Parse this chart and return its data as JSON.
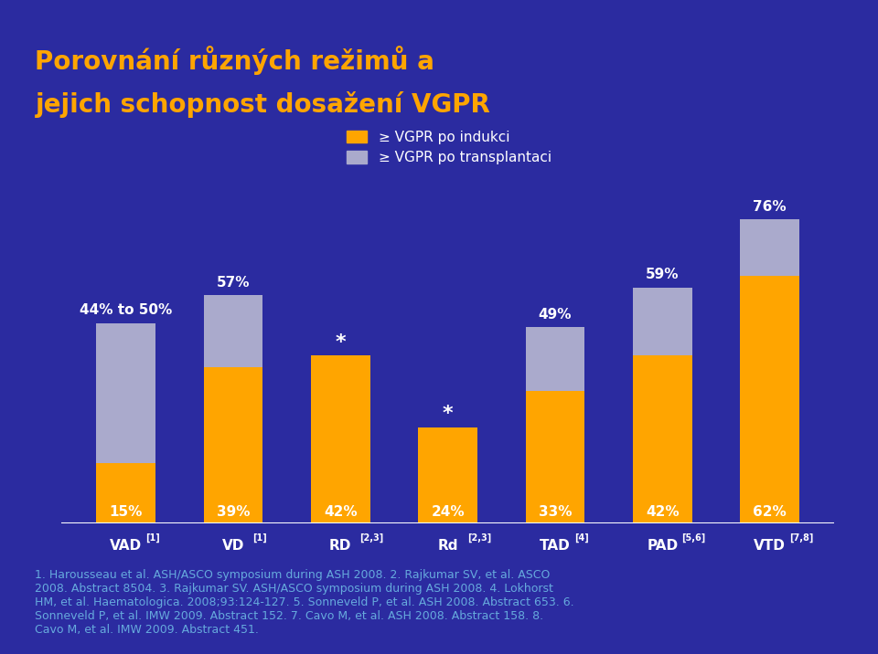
{
  "title_line1": "Porovnání různých režimů a",
  "title_line2": "jejich schopnost dosažení VGPR",
  "title_color": "#FFA500",
  "background_color": "#2B2BA0",
  "bar_color_orange": "#FFA500",
  "bar_color_gray": "#AAAACC",
  "categories": [
    "VAD[1]",
    "VD[1]",
    "RD[2,3]",
    "Rd[2,3]",
    "TAD[4]",
    "PAD[5,6]",
    "VTD[7,8]"
  ],
  "bottom_values": [
    15,
    39,
    42,
    24,
    33,
    42,
    62
  ],
  "top_values": [
    35,
    18,
    0,
    0,
    16,
    17,
    14
  ],
  "top_labels": [
    "44% to 50%",
    "57%",
    "*",
    "*",
    "49%",
    "59%",
    "76%"
  ],
  "bottom_labels": [
    "15%",
    "39%",
    "42%",
    "24%",
    "33%",
    "42%",
    "62%"
  ],
  "legend_label1": "≥ VGPR po indukci",
  "legend_label2": "≥ VGPR po transplantaci",
  "footer_text": "1. Harousseau et al. ASH/ASCO symposium during ASH 2008. 2. Rajkumar SV, et al. ASCO\n2008. Abstract 8504. 3. Rajkumar SV. ASH/ASCO symposium during ASH 2008. 4. Lokhorst\nHM, et al. Haematologica. 2008;93:124-127. 5. Sonneveld P, et al. ASH 2008. Abstract 653. 6.\nSonneveld P, et al. IMW 2009. Abstract 152. 7. Cavo M, et al. ASH 2008. Abstract 158. 8.\nCavo M, et al. IMW 2009. Abstract 451.",
  "footer_color": "#66AADD",
  "text_color_white": "#FFFFFF",
  "text_color_dark": "#FFFFFF",
  "axis_line_color": "#FFFFFF"
}
